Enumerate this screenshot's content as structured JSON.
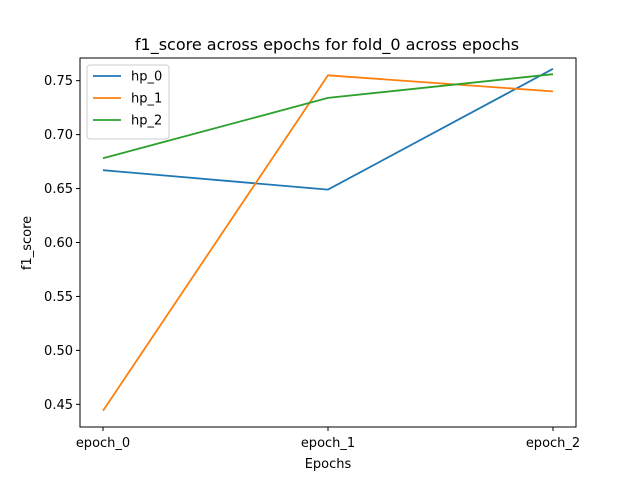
{
  "chart_data": {
    "type": "line",
    "title": "f1_score across epochs for fold_0 across epochs",
    "xlabel": "Epochs",
    "ylabel": "f1_score",
    "categories": [
      "epoch_0",
      "epoch_1",
      "epoch_2"
    ],
    "yticks": [
      "0.45",
      "0.50",
      "0.55",
      "0.60",
      "0.65",
      "0.70",
      "0.75"
    ],
    "ylim": [
      0.429,
      0.771
    ],
    "grid": false,
    "legend_position": "top-left",
    "series": [
      {
        "name": "hp_0",
        "color": "#1f77b4",
        "values": [
          0.667,
          0.649,
          0.761
        ]
      },
      {
        "name": "hp_1",
        "color": "#ff7f0e",
        "values": [
          0.444,
          0.755,
          0.74
        ]
      },
      {
        "name": "hp_2",
        "color": "#2ca02c",
        "values": [
          0.678,
          0.734,
          0.756
        ]
      }
    ]
  }
}
